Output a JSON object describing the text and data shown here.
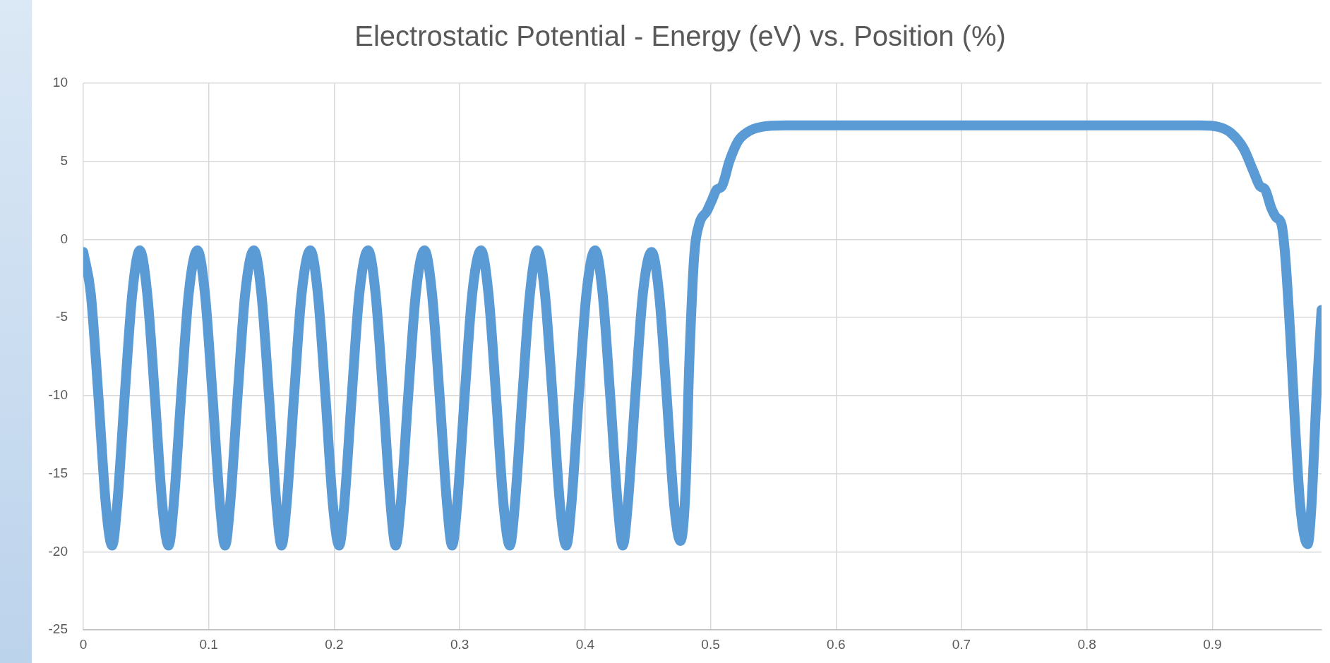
{
  "chart_data": {
    "type": "line",
    "title": "Electrostatic Potential - Energy (eV) vs. Position (%)",
    "x": [
      0,
      0.006,
      0.012,
      0.018,
      0.023,
      0.027,
      0.033,
      0.039,
      0.045,
      0.051,
      0.057,
      0.063,
      0.068,
      0.072,
      0.078,
      0.084,
      0.091,
      0.097,
      0.103,
      0.109,
      0.113,
      0.117,
      0.123,
      0.129,
      0.136,
      0.142,
      0.148,
      0.154,
      0.158,
      0.162,
      0.168,
      0.174,
      0.181,
      0.187,
      0.193,
      0.199,
      0.204,
      0.208,
      0.214,
      0.22,
      0.227,
      0.233,
      0.239,
      0.245,
      0.249,
      0.253,
      0.259,
      0.265,
      0.272,
      0.278,
      0.284,
      0.29,
      0.294,
      0.298,
      0.304,
      0.31,
      0.317,
      0.323,
      0.329,
      0.335,
      0.34,
      0.344,
      0.35,
      0.356,
      0.362,
      0.368,
      0.374,
      0.38,
      0.385,
      0.389,
      0.395,
      0.401,
      0.408,
      0.414,
      0.42,
      0.426,
      0.43,
      0.434,
      0.44,
      0.446,
      0.453,
      0.459,
      0.465,
      0.471,
      0.476,
      0.48,
      0.483,
      0.487,
      0.491,
      0.497,
      0.501,
      0.505,
      0.509,
      0.515,
      0.522,
      0.53,
      0.54,
      0.56,
      0.7,
      0.89,
      0.905,
      0.915,
      0.925,
      0.933,
      0.938,
      0.942,
      0.947,
      0.951,
      0.955,
      0.958,
      0.962,
      0.966,
      0.97,
      0.976,
      0.979,
      0.983,
      0.987
    ],
    "series": [
      {
        "color": "#5b9bd5",
        "values": [
          -0.8,
          -3.5,
          -10,
          -17,
          -19.6,
          -17,
          -10,
          -3.5,
          -0.7,
          -3.5,
          -10,
          -17,
          -19.6,
          -17,
          -10,
          -3.5,
          -0.7,
          -3.5,
          -10,
          -17,
          -19.6,
          -17,
          -10,
          -3.5,
          -0.7,
          -3.5,
          -10,
          -17,
          -19.6,
          -17,
          -10,
          -3.5,
          -0.7,
          -3.5,
          -10,
          -17,
          -19.6,
          -17,
          -10,
          -3.5,
          -0.7,
          -3.5,
          -10,
          -17,
          -19.6,
          -17,
          -10,
          -3.5,
          -0.7,
          -3.5,
          -10,
          -17,
          -19.6,
          -17,
          -10,
          -3.5,
          -0.7,
          -3.5,
          -10,
          -17,
          -19.6,
          -17,
          -10,
          -3.5,
          -0.7,
          -3.5,
          -10,
          -17,
          -19.6,
          -17,
          -10,
          -3.5,
          -0.7,
          -3.5,
          -10,
          -17,
          -19.6,
          -17,
          -10,
          -3.5,
          -0.8,
          -3.5,
          -10,
          -17,
          -19.3,
          -16,
          -8,
          -1,
          1,
          1.8,
          2.5,
          3.2,
          3.4,
          5,
          6.3,
          6.9,
          7.2,
          7.3,
          7.3,
          7.3,
          7.2,
          6.8,
          5.8,
          4.3,
          3.4,
          3.2,
          2,
          1.4,
          1,
          -1,
          -6,
          -12,
          -17,
          -19.5,
          -17,
          -10,
          -4.5
        ]
      }
    ],
    "xlim": [
      0,
      0.987
    ],
    "xticks": [
      0,
      0.1,
      0.2,
      0.3,
      0.4,
      0.5,
      0.6,
      0.7,
      0.8,
      0.9
    ],
    "ylim": [
      -25,
      10
    ],
    "yticks": [
      -25,
      -20,
      -15,
      -10,
      -5,
      0,
      5,
      10
    ],
    "grid": true,
    "legend": false,
    "marker": "none",
    "line_style": "solid"
  }
}
